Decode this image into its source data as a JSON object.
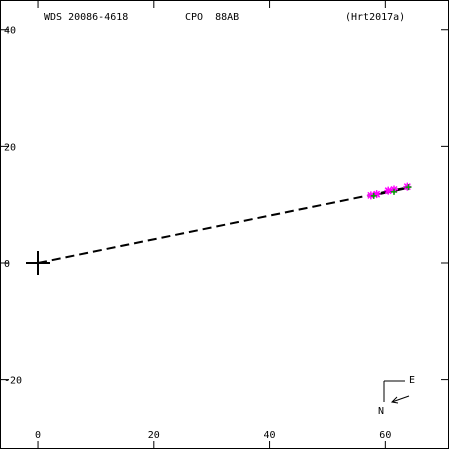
{
  "chart_data": {
    "type": "scatter",
    "annotations": [
      "WDS 20086-4618",
      "CPO  88AB",
      "(Hrt2017a)",
      "E",
      "N"
    ],
    "xlim": [
      -6.4,
      71
    ],
    "ylim": [
      -31.9,
      45.1
    ],
    "xticks": [
      0,
      20,
      40,
      60
    ],
    "yticks": [
      -20,
      0,
      20,
      40
    ],
    "series": [
      {
        "kind": "line",
        "dash": true,
        "color": "#000000",
        "x": [
          0,
          64
        ],
        "y": [
          0,
          13
        ]
      },
      {
        "kind": "line",
        "dash": false,
        "color": "#000000",
        "x": [
          57.5,
          64
        ],
        "y": [
          11.5,
          12.9
        ]
      },
      {
        "kind": "star",
        "color": "#ff00ff",
        "x": [
          57.5,
          58.5,
          60.5,
          61.5,
          63.8
        ],
        "y": [
          11.6,
          11.8,
          12.4,
          12.6,
          13.1
        ]
      },
      {
        "kind": "plus",
        "color": "#00a000",
        "x": [
          58,
          61.5,
          64
        ],
        "y": [
          11.5,
          12.2,
          13
        ]
      }
    ]
  }
}
